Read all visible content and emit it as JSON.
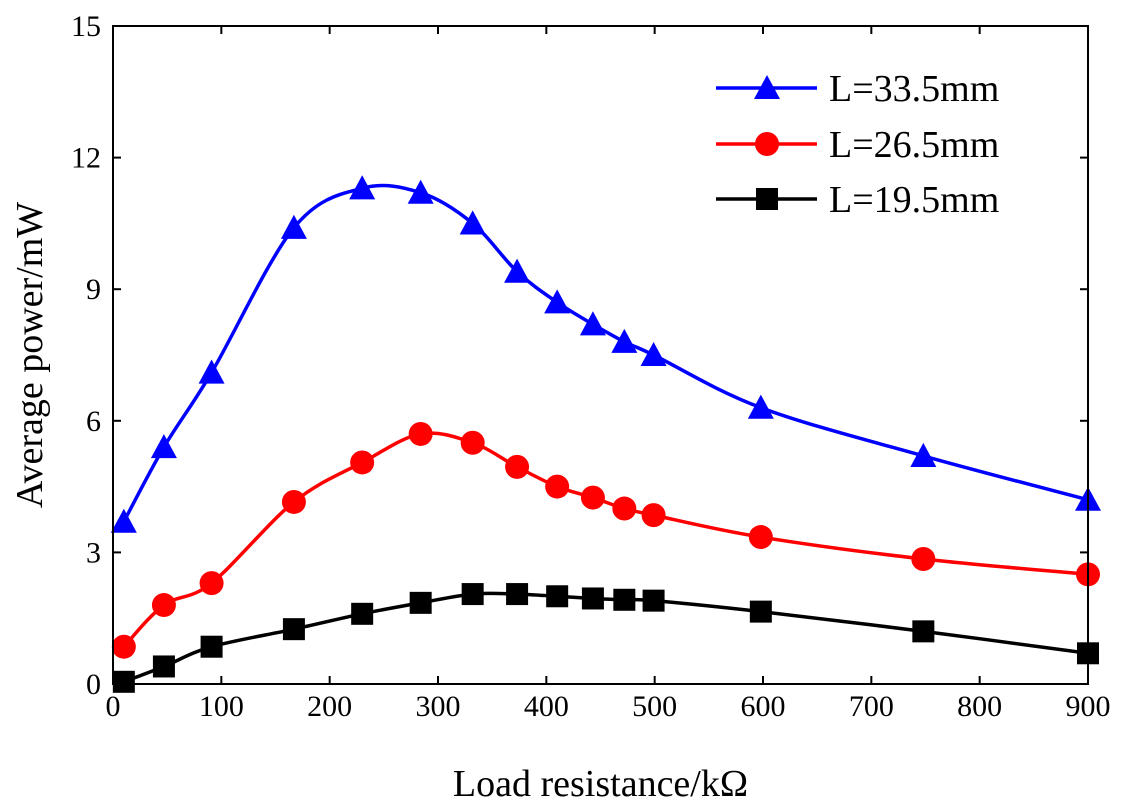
{
  "chart_data": {
    "type": "line",
    "title": "",
    "xlabel": "Load resistance/kΩ",
    "ylabel": "Average power/mW",
    "xlim": [
      0,
      900
    ],
    "ylim": [
      0,
      15
    ],
    "xticks": [
      0,
      100,
      200,
      300,
      400,
      500,
      600,
      700,
      800,
      900
    ],
    "yticks": [
      0,
      3,
      6,
      9,
      12,
      15
    ],
    "xtick_labels": [
      "0",
      "100",
      "200",
      "300",
      "400",
      "500",
      "600",
      "700",
      "800",
      "900"
    ],
    "ytick_labels": [
      "0",
      "3",
      "6",
      "9",
      "12",
      "15"
    ],
    "grid": false,
    "legend_position": "top-right",
    "series": [
      {
        "name": "L=33.5mm",
        "color": "#0000ff",
        "marker": "triangle",
        "x": [
          10,
          47,
          91,
          167,
          230,
          284,
          332,
          373,
          410,
          443,
          472,
          499,
          598,
          748,
          900
        ],
        "y": [
          3.7,
          5.4,
          7.1,
          10.4,
          11.3,
          11.2,
          10.5,
          9.4,
          8.7,
          8.2,
          7.8,
          7.5,
          6.3,
          5.2,
          4.2
        ]
      },
      {
        "name": "L=26.5mm",
        "color": "#ff0000",
        "marker": "circle",
        "x": [
          10,
          47,
          91,
          167,
          230,
          284,
          332,
          373,
          410,
          443,
          472,
          499,
          598,
          748,
          900
        ],
        "y": [
          0.85,
          1.8,
          2.3,
          4.15,
          5.05,
          5.7,
          5.5,
          4.95,
          4.5,
          4.25,
          4.0,
          3.85,
          3.35,
          2.85,
          2.5
        ]
      },
      {
        "name": "L=19.5mm",
        "color": "#000000",
        "marker": "square",
        "x": [
          10,
          47,
          91,
          167,
          230,
          284,
          332,
          373,
          410,
          443,
          472,
          499,
          598,
          748,
          900
        ],
        "y": [
          0.05,
          0.4,
          0.85,
          1.25,
          1.6,
          1.85,
          2.05,
          2.05,
          2.0,
          1.95,
          1.92,
          1.9,
          1.65,
          1.2,
          0.7
        ]
      }
    ]
  }
}
